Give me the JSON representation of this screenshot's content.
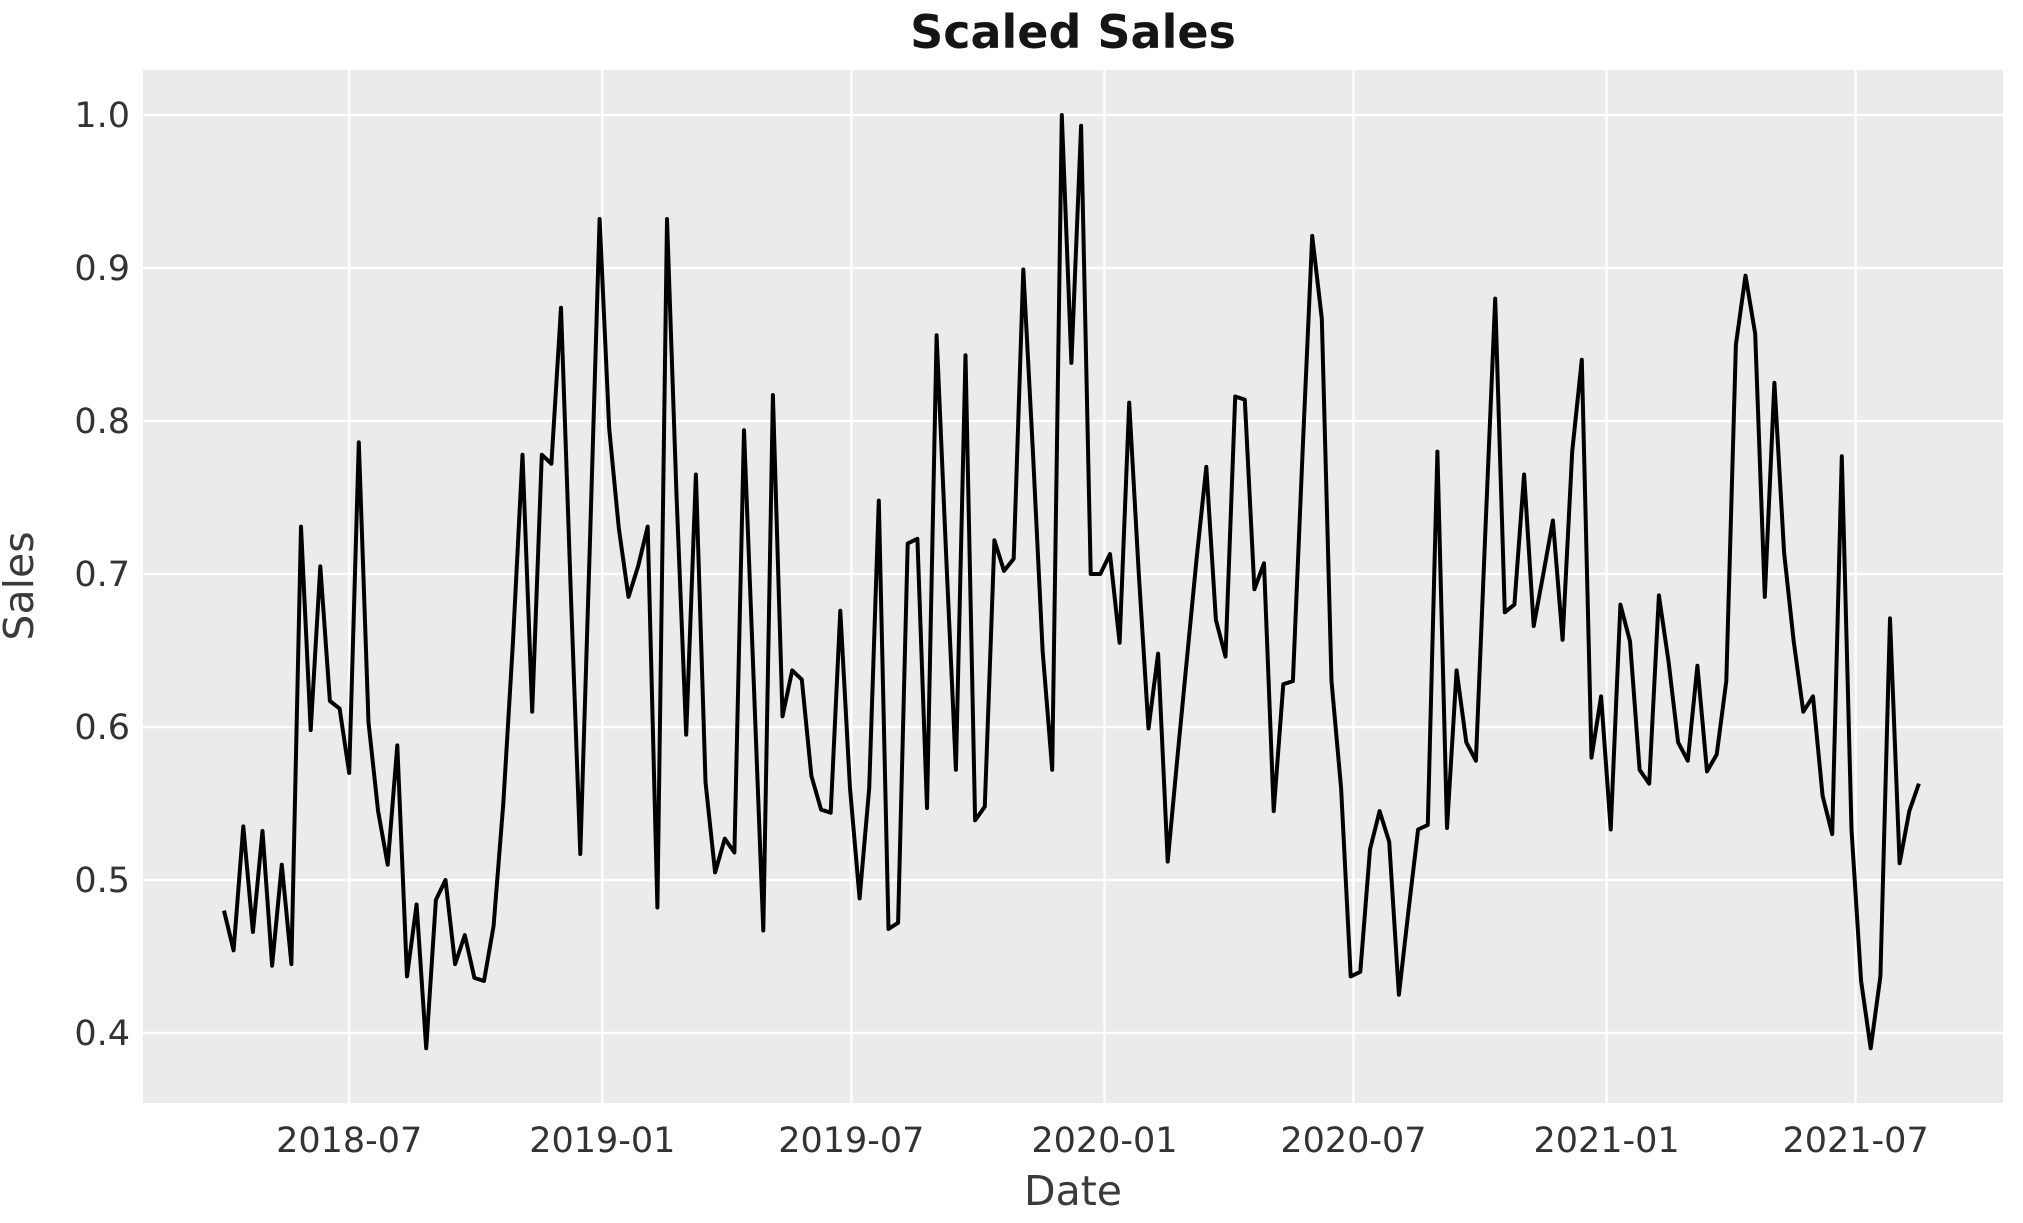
{
  "chart_data": {
    "type": "line",
    "title": "Scaled Sales",
    "xlabel": "Date",
    "ylabel": "Sales",
    "x_start_date": "2018-04-01",
    "x_end_date": "2021-08-15",
    "x_frequency": "weekly",
    "ylim": [
      0.354,
      1.029
    ],
    "grid": true,
    "legend": false,
    "colors": {
      "plot_background": "#ebebeb",
      "figure_background": "#ffffff",
      "gridline": "#ffffff",
      "line": "#000000",
      "text": "#333333"
    },
    "yticks": [
      {
        "value": 1.0,
        "label": "1.0"
      },
      {
        "value": 0.9,
        "label": "0.9"
      },
      {
        "value": 0.8,
        "label": "0.8"
      },
      {
        "value": 0.7,
        "label": "0.7"
      },
      {
        "value": 0.6,
        "label": "0.6"
      },
      {
        "value": 0.5,
        "label": "0.5"
      },
      {
        "value": 0.4,
        "label": "0.4"
      }
    ],
    "xticks": [
      {
        "week": 13.0,
        "label": "2018-07"
      },
      {
        "week": 39.286,
        "label": "2019-01"
      },
      {
        "week": 65.143,
        "label": "2019-07"
      },
      {
        "week": 91.429,
        "label": "2020-01"
      },
      {
        "week": 117.286,
        "label": "2020-07"
      },
      {
        "week": 143.571,
        "label": "2021-01"
      },
      {
        "week": 169.429,
        "label": "2021-07"
      }
    ],
    "values": [
      0.48,
      0.454,
      0.535,
      0.466,
      0.532,
      0.444,
      0.51,
      0.445,
      0.731,
      0.598,
      0.705,
      0.617,
      0.612,
      0.57,
      0.786,
      0.603,
      0.545,
      0.51,
      0.588,
      0.437,
      0.484,
      0.39,
      0.487,
      0.5,
      0.445,
      0.464,
      0.436,
      0.434,
      0.47,
      0.55,
      0.655,
      0.778,
      0.61,
      0.778,
      0.772,
      0.874,
      0.69,
      0.517,
      0.72,
      0.932,
      0.795,
      0.73,
      0.685,
      0.705,
      0.731,
      0.482,
      0.932,
      0.75,
      0.595,
      0.765,
      0.564,
      0.505,
      0.527,
      0.518,
      0.794,
      0.63,
      0.467,
      0.817,
      0.607,
      0.637,
      0.631,
      0.568,
      0.546,
      0.544,
      0.676,
      0.56,
      0.488,
      0.56,
      0.748,
      0.468,
      0.472,
      0.72,
      0.723,
      0.547,
      0.856,
      0.71,
      0.572,
      0.843,
      0.539,
      0.548,
      0.722,
      0.702,
      0.71,
      0.899,
      0.78,
      0.65,
      0.572,
      1.0,
      0.838,
      0.993,
      0.7,
      0.7,
      0.713,
      0.655,
      0.812,
      0.7,
      0.599,
      0.648,
      0.512,
      0.58,
      0.645,
      0.71,
      0.77,
      0.67,
      0.646,
      0.816,
      0.814,
      0.69,
      0.707,
      0.545,
      0.628,
      0.63,
      0.78,
      0.921,
      0.867,
      0.63,
      0.56,
      0.437,
      0.44,
      0.52,
      0.545,
      0.525,
      0.425,
      0.48,
      0.533,
      0.536,
      0.78,
      0.534,
      0.637,
      0.59,
      0.578,
      0.73,
      0.88,
      0.675,
      0.68,
      0.765,
      0.666,
      0.7,
      0.735,
      0.657,
      0.78,
      0.84,
      0.58,
      0.62,
      0.533,
      0.68,
      0.656,
      0.572,
      0.563,
      0.686,
      0.643,
      0.59,
      0.578,
      0.64,
      0.571,
      0.582,
      0.63,
      0.85,
      0.895,
      0.857,
      0.685,
      0.825,
      0.714,
      0.656,
      0.61,
      0.62,
      0.555,
      0.53,
      0.777,
      0.533,
      0.434,
      0.39,
      0.437,
      0.671,
      0.511,
      0.545,
      0.563
    ]
  }
}
